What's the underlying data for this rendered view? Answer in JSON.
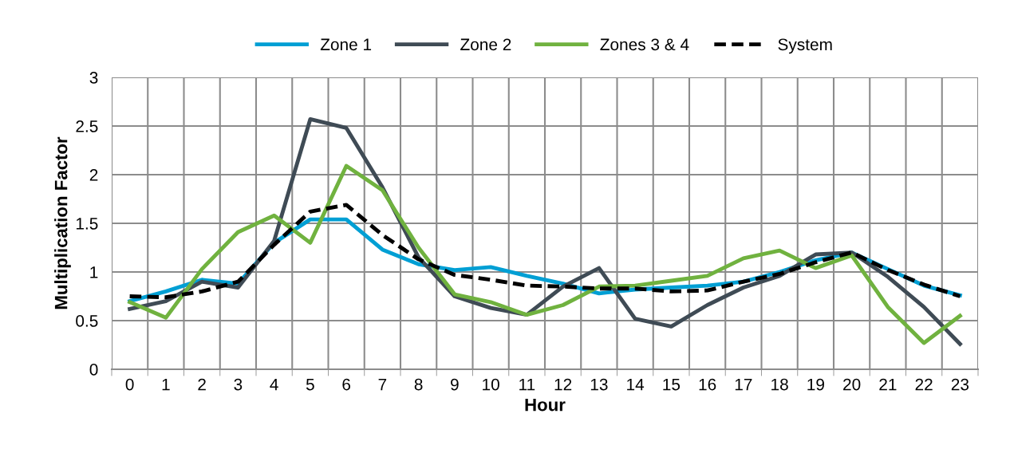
{
  "chart_data": {
    "type": "line",
    "xlabel": "Hour",
    "ylabel": "Multiplication Factor",
    "categories": [
      "0",
      "1",
      "2",
      "3",
      "4",
      "5",
      "6",
      "7",
      "8",
      "9",
      "10",
      "11",
      "12",
      "13",
      "14",
      "15",
      "16",
      "17",
      "18",
      "19",
      "20",
      "21",
      "22",
      "23"
    ],
    "ylim": [
      0,
      3
    ],
    "yticks": [
      0,
      0.5,
      1,
      1.5,
      2,
      2.5,
      3
    ],
    "grid": true,
    "legend": "top",
    "marker": "none",
    "series": [
      {
        "name": "Zone 1",
        "color": "#009fd4",
        "line_style": "solid",
        "values": [
          0.7,
          0.8,
          0.92,
          0.88,
          1.3,
          1.54,
          1.54,
          1.23,
          1.08,
          1.02,
          1.05,
          0.96,
          0.88,
          0.78,
          0.82,
          0.84,
          0.86,
          0.9,
          1.0,
          1.12,
          1.2,
          1.03,
          0.86,
          0.76
        ]
      },
      {
        "name": "Zone 2",
        "color": "#3f4b55",
        "line_style": "solid",
        "values": [
          0.62,
          0.7,
          0.9,
          0.84,
          1.32,
          2.57,
          2.48,
          1.87,
          1.15,
          0.75,
          0.63,
          0.56,
          0.85,
          1.04,
          0.52,
          0.44,
          0.66,
          0.84,
          0.96,
          1.18,
          1.2,
          0.95,
          0.64,
          0.26
        ]
      },
      {
        "name": "Zones 3 & 4",
        "color": "#70b23f",
        "line_style": "solid",
        "values": [
          0.69,
          0.53,
          1.03,
          1.41,
          1.58,
          1.3,
          2.09,
          1.84,
          1.25,
          0.77,
          0.69,
          0.56,
          0.66,
          0.85,
          0.86,
          0.91,
          0.96,
          1.14,
          1.22,
          1.04,
          1.17,
          0.64,
          0.27,
          0.55
        ]
      },
      {
        "name": "System",
        "color": "#000000",
        "line_style": "dashed",
        "values": [
          0.75,
          0.74,
          0.8,
          0.9,
          1.28,
          1.62,
          1.69,
          1.38,
          1.13,
          0.97,
          0.92,
          0.86,
          0.85,
          0.83,
          0.83,
          0.8,
          0.81,
          0.9,
          0.98,
          1.1,
          1.2,
          1.02,
          0.87,
          0.75
        ]
      }
    ]
  }
}
